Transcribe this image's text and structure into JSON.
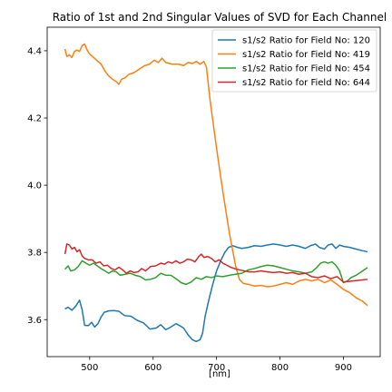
{
  "chart_data": {
    "type": "line",
    "title": "Ratio of 1st and 2nd Singular Values of SVD for Each Channel",
    "xlabel": "[nm]",
    "ylabel": "",
    "xlim": [
      433,
      958
    ],
    "ylim": [
      3.49,
      4.47
    ],
    "xticks": [
      500,
      600,
      700,
      800,
      900
    ],
    "yticks": [
      3.6,
      3.8,
      4.0,
      4.2,
      4.4
    ],
    "grid": false,
    "legend_position": "top-right",
    "series": [
      {
        "name": "s1/s2 Ratio for Field No: 120",
        "color": "#1f77b4",
        "points": [
          [
            461,
            3.632
          ],
          [
            466,
            3.637
          ],
          [
            472,
            3.628
          ],
          [
            478,
            3.64
          ],
          [
            484,
            3.658
          ],
          [
            488,
            3.63
          ],
          [
            492,
            3.583
          ],
          [
            498,
            3.582
          ],
          [
            503,
            3.592
          ],
          [
            508,
            3.578
          ],
          [
            513,
            3.588
          ],
          [
            518,
            3.608
          ],
          [
            523,
            3.622
          ],
          [
            530,
            3.626
          ],
          [
            538,
            3.627
          ],
          [
            546,
            3.625
          ],
          [
            555,
            3.612
          ],
          [
            565,
            3.61
          ],
          [
            575,
            3.598
          ],
          [
            585,
            3.59
          ],
          [
            595,
            3.572
          ],
          [
            605,
            3.575
          ],
          [
            612,
            3.585
          ],
          [
            620,
            3.57
          ],
          [
            628,
            3.578
          ],
          [
            636,
            3.588
          ],
          [
            642,
            3.582
          ],
          [
            648,
            3.575
          ],
          [
            655,
            3.555
          ],
          [
            662,
            3.54
          ],
          [
            668,
            3.535
          ],
          [
            674,
            3.54
          ],
          [
            678,
            3.56
          ],
          [
            682,
            3.61
          ],
          [
            688,
            3.66
          ],
          [
            694,
            3.705
          ],
          [
            700,
            3.745
          ],
          [
            707,
            3.777
          ],
          [
            713,
            3.8
          ],
          [
            719,
            3.815
          ],
          [
            726,
            3.82
          ],
          [
            733,
            3.815
          ],
          [
            740,
            3.812
          ],
          [
            750,
            3.815
          ],
          [
            760,
            3.82
          ],
          [
            770,
            3.818
          ],
          [
            780,
            3.822
          ],
          [
            790,
            3.825
          ],
          [
            800,
            3.822
          ],
          [
            810,
            3.818
          ],
          [
            820,
            3.822
          ],
          [
            830,
            3.818
          ],
          [
            840,
            3.812
          ],
          [
            848,
            3.82
          ],
          [
            856,
            3.825
          ],
          [
            862,
            3.815
          ],
          [
            870,
            3.81
          ],
          [
            876,
            3.822
          ],
          [
            882,
            3.825
          ],
          [
            888,
            3.812
          ],
          [
            894,
            3.822
          ],
          [
            900,
            3.818
          ],
          [
            910,
            3.815
          ],
          [
            920,
            3.81
          ],
          [
            930,
            3.805
          ],
          [
            938,
            3.802
          ]
        ]
      },
      {
        "name": "s1/s2 Ratio for Field No: 419",
        "color": "#ff7f0e",
        "points": [
          [
            461,
            4.405
          ],
          [
            464,
            4.383
          ],
          [
            468,
            4.388
          ],
          [
            472,
            4.38
          ],
          [
            476,
            4.398
          ],
          [
            480,
            4.402
          ],
          [
            484,
            4.398
          ],
          [
            488,
            4.415
          ],
          [
            492,
            4.42
          ],
          [
            496,
            4.402
          ],
          [
            500,
            4.39
          ],
          [
            505,
            4.382
          ],
          [
            512,
            4.37
          ],
          [
            518,
            4.36
          ],
          [
            524,
            4.34
          ],
          [
            530,
            4.325
          ],
          [
            536,
            4.315
          ],
          [
            542,
            4.308
          ],
          [
            546,
            4.3
          ],
          [
            550,
            4.315
          ],
          [
            556,
            4.32
          ],
          [
            562,
            4.33
          ],
          [
            570,
            4.335
          ],
          [
            578,
            4.345
          ],
          [
            586,
            4.355
          ],
          [
            594,
            4.36
          ],
          [
            602,
            4.372
          ],
          [
            608,
            4.365
          ],
          [
            614,
            4.378
          ],
          [
            620,
            4.365
          ],
          [
            630,
            4.36
          ],
          [
            640,
            4.36
          ],
          [
            648,
            4.356
          ],
          [
            655,
            4.365
          ],
          [
            662,
            4.362
          ],
          [
            668,
            4.368
          ],
          [
            674,
            4.36
          ],
          [
            680,
            4.368
          ],
          [
            684,
            4.352
          ],
          [
            690,
            4.25
          ],
          [
            700,
            4.11
          ],
          [
            710,
            3.98
          ],
          [
            720,
            3.86
          ],
          [
            730,
            3.76
          ],
          [
            736,
            3.72
          ],
          [
            742,
            3.708
          ],
          [
            750,
            3.705
          ],
          [
            760,
            3.7
          ],
          [
            770,
            3.702
          ],
          [
            780,
            3.698
          ],
          [
            790,
            3.7
          ],
          [
            800,
            3.705
          ],
          [
            810,
            3.71
          ],
          [
            820,
            3.705
          ],
          [
            830,
            3.715
          ],
          [
            840,
            3.72
          ],
          [
            850,
            3.715
          ],
          [
            860,
            3.72
          ],
          [
            870,
            3.71
          ],
          [
            880,
            3.718
          ],
          [
            890,
            3.705
          ],
          [
            900,
            3.69
          ],
          [
            910,
            3.68
          ],
          [
            920,
            3.665
          ],
          [
            930,
            3.655
          ],
          [
            938,
            3.642
          ]
        ]
      },
      {
        "name": "s1/s2 Ratio for Field No: 454",
        "color": "#2ca02c",
        "points": [
          [
            461,
            3.75
          ],
          [
            466,
            3.76
          ],
          [
            470,
            3.745
          ],
          [
            476,
            3.748
          ],
          [
            482,
            3.758
          ],
          [
            488,
            3.775
          ],
          [
            494,
            3.768
          ],
          [
            500,
            3.762
          ],
          [
            506,
            3.768
          ],
          [
            512,
            3.76
          ],
          [
            518,
            3.752
          ],
          [
            524,
            3.745
          ],
          [
            530,
            3.738
          ],
          [
            536,
            3.745
          ],
          [
            542,
            3.742
          ],
          [
            548,
            3.732
          ],
          [
            556,
            3.735
          ],
          [
            564,
            3.738
          ],
          [
            572,
            3.732
          ],
          [
            580,
            3.728
          ],
          [
            588,
            3.718
          ],
          [
            596,
            3.72
          ],
          [
            604,
            3.725
          ],
          [
            612,
            3.738
          ],
          [
            620,
            3.732
          ],
          [
            628,
            3.732
          ],
          [
            636,
            3.722
          ],
          [
            644,
            3.71
          ],
          [
            652,
            3.705
          ],
          [
            660,
            3.712
          ],
          [
            668,
            3.725
          ],
          [
            676,
            3.72
          ],
          [
            684,
            3.728
          ],
          [
            692,
            3.725
          ],
          [
            700,
            3.73
          ],
          [
            710,
            3.728
          ],
          [
            720,
            3.732
          ],
          [
            730,
            3.735
          ],
          [
            740,
            3.738
          ],
          [
            750,
            3.748
          ],
          [
            760,
            3.752
          ],
          [
            770,
            3.758
          ],
          [
            780,
            3.762
          ],
          [
            790,
            3.76
          ],
          [
            800,
            3.755
          ],
          [
            810,
            3.75
          ],
          [
            820,
            3.745
          ],
          [
            830,
            3.742
          ],
          [
            840,
            3.738
          ],
          [
            850,
            3.742
          ],
          [
            858,
            3.755
          ],
          [
            864,
            3.768
          ],
          [
            870,
            3.772
          ],
          [
            876,
            3.768
          ],
          [
            882,
            3.772
          ],
          [
            888,
            3.762
          ],
          [
            894,
            3.745
          ],
          [
            900,
            3.71
          ],
          [
            906,
            3.715
          ],
          [
            912,
            3.725
          ],
          [
            920,
            3.732
          ],
          [
            928,
            3.742
          ],
          [
            938,
            3.755
          ]
        ]
      },
      {
        "name": "s1/s2 Ratio for Field No: 644",
        "color": "#d62728",
        "points": [
          [
            461,
            3.795
          ],
          [
            464,
            3.825
          ],
          [
            468,
            3.822
          ],
          [
            472,
            3.81
          ],
          [
            476,
            3.815
          ],
          [
            480,
            3.802
          ],
          [
            484,
            3.808
          ],
          [
            488,
            3.79
          ],
          [
            492,
            3.782
          ],
          [
            498,
            3.778
          ],
          [
            504,
            3.778
          ],
          [
            510,
            3.768
          ],
          [
            516,
            3.772
          ],
          [
            522,
            3.76
          ],
          [
            528,
            3.762
          ],
          [
            534,
            3.752
          ],
          [
            540,
            3.748
          ],
          [
            546,
            3.756
          ],
          [
            552,
            3.748
          ],
          [
            558,
            3.738
          ],
          [
            564,
            3.745
          ],
          [
            570,
            3.74
          ],
          [
            576,
            3.742
          ],
          [
            582,
            3.752
          ],
          [
            588,
            3.745
          ],
          [
            596,
            3.758
          ],
          [
            604,
            3.76
          ],
          [
            612,
            3.768
          ],
          [
            618,
            3.765
          ],
          [
            624,
            3.772
          ],
          [
            630,
            3.768
          ],
          [
            636,
            3.775
          ],
          [
            642,
            3.768
          ],
          [
            648,
            3.772
          ],
          [
            654,
            3.78
          ],
          [
            660,
            3.778
          ],
          [
            666,
            3.772
          ],
          [
            672,
            3.788
          ],
          [
            676,
            3.795
          ],
          [
            680,
            3.785
          ],
          [
            686,
            3.788
          ],
          [
            692,
            3.782
          ],
          [
            698,
            3.772
          ],
          [
            704,
            3.778
          ],
          [
            710,
            3.768
          ],
          [
            716,
            3.762
          ],
          [
            722,
            3.756
          ],
          [
            728,
            3.752
          ],
          [
            736,
            3.748
          ],
          [
            744,
            3.745
          ],
          [
            752,
            3.742
          ],
          [
            760,
            3.742
          ],
          [
            770,
            3.745
          ],
          [
            780,
            3.742
          ],
          [
            790,
            3.74
          ],
          [
            800,
            3.742
          ],
          [
            810,
            3.738
          ],
          [
            820,
            3.74
          ],
          [
            830,
            3.735
          ],
          [
            840,
            3.738
          ],
          [
            850,
            3.728
          ],
          [
            860,
            3.725
          ],
          [
            870,
            3.73
          ],
          [
            880,
            3.722
          ],
          [
            890,
            3.728
          ],
          [
            900,
            3.712
          ],
          [
            910,
            3.714
          ],
          [
            920,
            3.716
          ],
          [
            930,
            3.718
          ],
          [
            938,
            3.72
          ]
        ]
      }
    ]
  }
}
